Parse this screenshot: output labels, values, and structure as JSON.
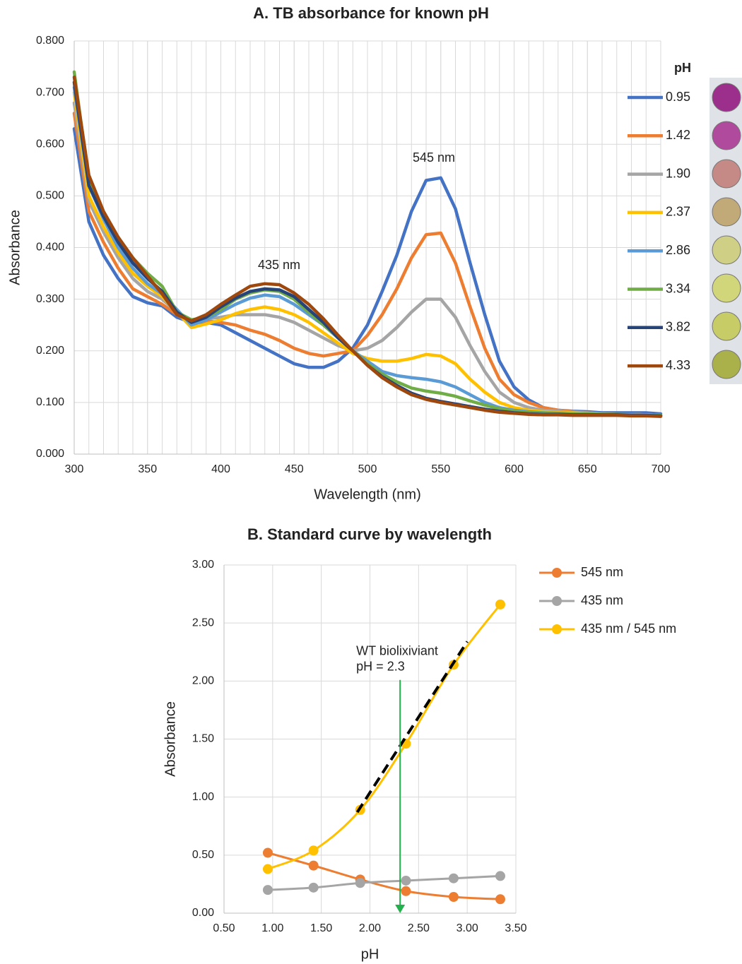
{
  "chart_data": [
    {
      "type": "line",
      "title": "A. TB absorbance for known pH",
      "x_label": "Wavelength (nm)",
      "y_label": "Absorbance",
      "legend_title": "pH",
      "legend_position": "right",
      "grid": true,
      "minor_grid": true,
      "smooth": false,
      "markers": false,
      "xlim": [
        300,
        700
      ],
      "xticks": [
        300,
        350,
        400,
        450,
        500,
        550,
        600,
        650,
        700
      ],
      "ylim": [
        0,
        0.8
      ],
      "yticks": [
        {
          "value": 0,
          "label": "0.000"
        },
        {
          "value": 0.1,
          "label": "0.100"
        },
        {
          "value": 0.2,
          "label": "0.200"
        },
        {
          "value": 0.3,
          "label": "0.300"
        },
        {
          "value": 0.4,
          "label": "0.400"
        },
        {
          "value": 0.5,
          "label": "0.500"
        },
        {
          "value": 0.6,
          "label": "0.600"
        },
        {
          "value": 0.7,
          "label": "0.700"
        },
        {
          "value": 0.8,
          "label": "0.800"
        }
      ],
      "annotations": [
        {
          "text": "435 nm"
        },
        {
          "text": "545 nm"
        }
      ],
      "x": [
        300,
        310,
        320,
        330,
        340,
        350,
        360,
        370,
        380,
        390,
        400,
        410,
        420,
        430,
        440,
        450,
        460,
        470,
        480,
        490,
        500,
        510,
        520,
        530,
        540,
        550,
        560,
        570,
        580,
        590,
        600,
        610,
        620,
        630,
        640,
        650,
        660,
        670,
        680,
        690,
        700
      ],
      "series": [
        {
          "name": "0.95",
          "color": "#4472c4",
          "values": [
            0.63,
            0.45,
            0.385,
            0.34,
            0.305,
            0.293,
            0.287,
            0.265,
            0.255,
            0.255,
            0.25,
            0.235,
            0.22,
            0.205,
            0.19,
            0.175,
            0.168,
            0.168,
            0.18,
            0.205,
            0.25,
            0.315,
            0.385,
            0.47,
            0.53,
            0.535,
            0.475,
            0.37,
            0.27,
            0.18,
            0.13,
            0.105,
            0.09,
            0.085,
            0.083,
            0.082,
            0.08,
            0.08,
            0.08,
            0.08,
            0.078
          ]
        },
        {
          "name": "1.42",
          "color": "#ed7d31",
          "values": [
            0.66,
            0.47,
            0.41,
            0.36,
            0.32,
            0.305,
            0.29,
            0.27,
            0.255,
            0.258,
            0.255,
            0.25,
            0.24,
            0.232,
            0.22,
            0.205,
            0.195,
            0.19,
            0.195,
            0.2,
            0.23,
            0.27,
            0.32,
            0.38,
            0.425,
            0.428,
            0.37,
            0.285,
            0.205,
            0.145,
            0.115,
            0.1,
            0.09,
            0.085,
            0.082,
            0.08,
            0.078,
            0.077,
            0.077,
            0.076,
            0.075
          ]
        },
        {
          "name": "1.90",
          "color": "#a5a5a5",
          "values": [
            0.68,
            0.49,
            0.43,
            0.38,
            0.34,
            0.315,
            0.3,
            0.275,
            0.255,
            0.262,
            0.265,
            0.27,
            0.27,
            0.27,
            0.265,
            0.255,
            0.24,
            0.225,
            0.21,
            0.2,
            0.205,
            0.22,
            0.245,
            0.275,
            0.3,
            0.3,
            0.265,
            0.21,
            0.16,
            0.12,
            0.1,
            0.09,
            0.085,
            0.083,
            0.081,
            0.08,
            0.078,
            0.077,
            0.077,
            0.076,
            0.075
          ]
        },
        {
          "name": "2.37",
          "color": "#ffc000",
          "values": [
            0.7,
            0.5,
            0.44,
            0.39,
            0.35,
            0.325,
            0.305,
            0.275,
            0.245,
            0.252,
            0.26,
            0.272,
            0.28,
            0.285,
            0.28,
            0.27,
            0.255,
            0.235,
            0.215,
            0.195,
            0.185,
            0.18,
            0.18,
            0.185,
            0.193,
            0.19,
            0.175,
            0.145,
            0.12,
            0.1,
            0.09,
            0.085,
            0.082,
            0.08,
            0.08,
            0.078,
            0.077,
            0.077,
            0.077,
            0.076,
            0.075
          ]
        },
        {
          "name": "2.86",
          "color": "#5b9bd5",
          "values": [
            0.71,
            0.52,
            0.455,
            0.4,
            0.36,
            0.33,
            0.31,
            0.28,
            0.25,
            0.26,
            0.275,
            0.29,
            0.302,
            0.308,
            0.305,
            0.29,
            0.27,
            0.25,
            0.225,
            0.2,
            0.18,
            0.16,
            0.152,
            0.148,
            0.145,
            0.14,
            0.13,
            0.115,
            0.1,
            0.09,
            0.085,
            0.082,
            0.08,
            0.079,
            0.078,
            0.078,
            0.077,
            0.077,
            0.077,
            0.076,
            0.075
          ]
        },
        {
          "name": "3.34",
          "color": "#70ad47",
          "values": [
            0.74,
            0.53,
            0.46,
            0.42,
            0.38,
            0.35,
            0.325,
            0.275,
            0.26,
            0.265,
            0.28,
            0.3,
            0.312,
            0.318,
            0.315,
            0.3,
            0.275,
            0.25,
            0.225,
            0.2,
            0.175,
            0.155,
            0.14,
            0.128,
            0.122,
            0.118,
            0.112,
            0.103,
            0.095,
            0.088,
            0.083,
            0.081,
            0.08,
            0.079,
            0.078,
            0.078,
            0.077,
            0.077,
            0.076,
            0.076,
            0.075
          ]
        },
        {
          "name": "3.82",
          "color": "#264478",
          "values": [
            0.72,
            0.52,
            0.46,
            0.41,
            0.37,
            0.34,
            0.315,
            0.275,
            0.255,
            0.265,
            0.285,
            0.302,
            0.315,
            0.32,
            0.318,
            0.305,
            0.28,
            0.255,
            0.225,
            0.2,
            0.172,
            0.15,
            0.133,
            0.118,
            0.108,
            0.102,
            0.097,
            0.092,
            0.087,
            0.083,
            0.08,
            0.078,
            0.077,
            0.077,
            0.076,
            0.076,
            0.076,
            0.076,
            0.075,
            0.075,
            0.074
          ]
        },
        {
          "name": "4.33",
          "color": "#9e480e",
          "values": [
            0.73,
            0.54,
            0.47,
            0.42,
            0.38,
            0.345,
            0.31,
            0.27,
            0.258,
            0.27,
            0.29,
            0.308,
            0.325,
            0.33,
            0.328,
            0.312,
            0.29,
            0.262,
            0.23,
            0.2,
            0.172,
            0.148,
            0.13,
            0.115,
            0.106,
            0.1,
            0.095,
            0.09,
            0.085,
            0.081,
            0.079,
            0.077,
            0.076,
            0.076,
            0.075,
            0.075,
            0.075,
            0.075,
            0.074,
            0.074,
            0.073
          ]
        }
      ]
    },
    {
      "type": "line",
      "title": "B. Standard curve by wavelength",
      "x_label": "pH",
      "y_label": "Absorbance",
      "legend_position": "right",
      "grid": true,
      "minor_grid": false,
      "smooth": true,
      "markers": true,
      "xlim": [
        0.5,
        3.5
      ],
      "xticks": [
        {
          "value": 0.5,
          "label": "0.50"
        },
        {
          "value": 1,
          "label": "1.00"
        },
        {
          "value": 1.5,
          "label": "1.50"
        },
        {
          "value": 2,
          "label": "2.00"
        },
        {
          "value": 2.5,
          "label": "2.50"
        },
        {
          "value": 3,
          "label": "3.00"
        },
        {
          "value": 3.5,
          "label": "3.50"
        }
      ],
      "ylim": [
        0,
        3
      ],
      "yticks": [
        {
          "value": 0,
          "label": "0.00"
        },
        {
          "value": 0.5,
          "label": "0.50"
        },
        {
          "value": 1,
          "label": "1.00"
        },
        {
          "value": 1.5,
          "label": "1.50"
        },
        {
          "value": 2,
          "label": "2.00"
        },
        {
          "value": 2.5,
          "label": "2.50"
        },
        {
          "value": 3,
          "label": "3.00"
        }
      ],
      "x": [
        0.95,
        1.42,
        1.9,
        2.37,
        2.86,
        3.34
      ],
      "series": [
        {
          "name": "545 nm",
          "color": "#ed7d31",
          "values": [
            0.52,
            0.41,
            0.29,
            0.19,
            0.14,
            0.12
          ]
        },
        {
          "name": "435 nm",
          "color": "#a5a5a5",
          "values": [
            0.2,
            0.22,
            0.26,
            0.28,
            0.3,
            0.32
          ]
        },
        {
          "name": "435 nm / 545 nm",
          "color": "#ffc000",
          "values": [
            0.38,
            0.54,
            0.89,
            1.46,
            2.14,
            2.66
          ]
        }
      ],
      "trendline": {
        "color": "#000000",
        "x": [
          1.87,
          3.0
        ],
        "values": [
          0.87,
          2.34
        ]
      },
      "annotation": {
        "lines": [
          "WT biolixiviant",
          "pH = 2.3"
        ],
        "color": "#22b14c",
        "x": 2.31,
        "y": [
          2.01,
          0
        ]
      }
    }
  ]
}
